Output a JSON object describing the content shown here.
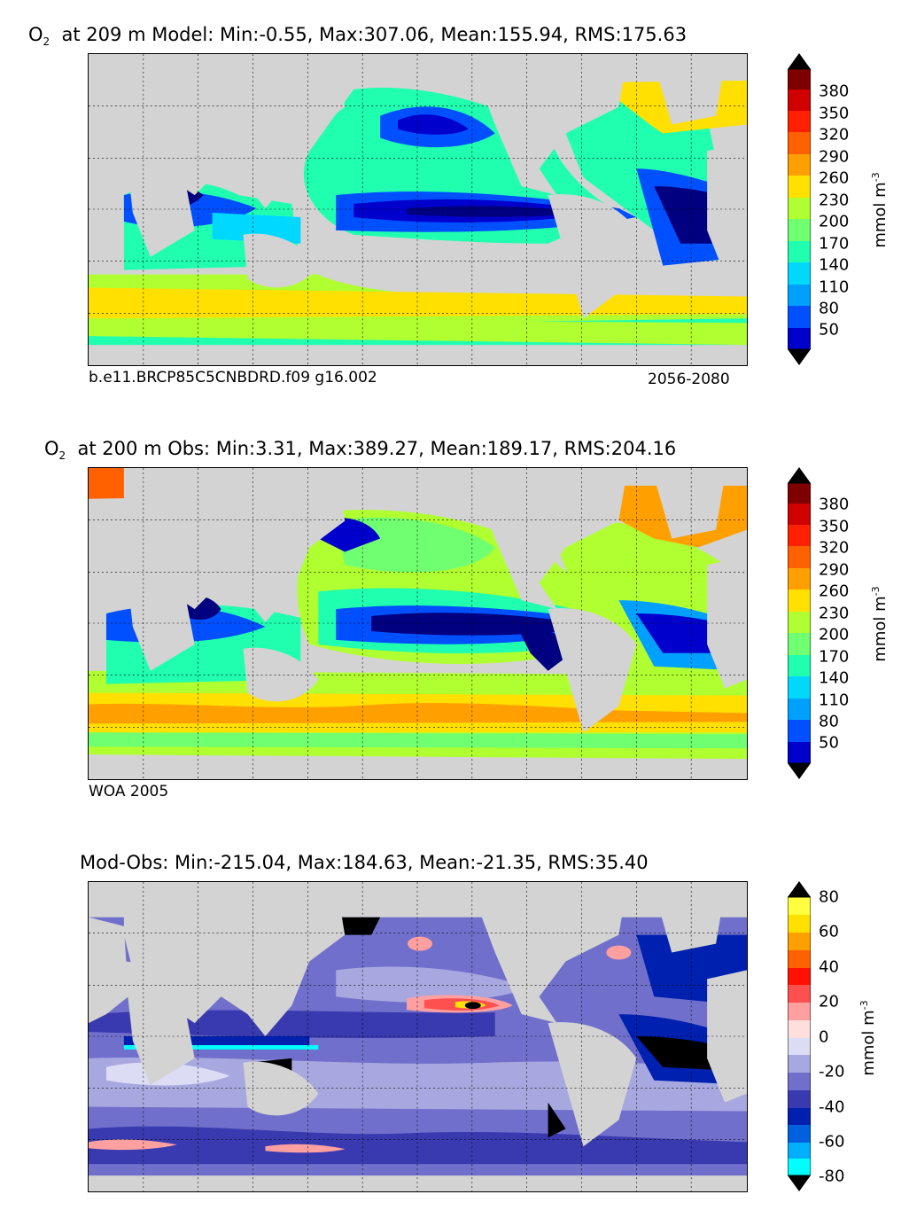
{
  "panels": [
    {
      "title_prefix": "O",
      "title_sub": "2",
      "title_rest": "at 209 m Model: Min:-0.55, Max:307.06, Mean:155.94, RMS:175.63",
      "note_left": "b.e11.BRCP85C5CNBDRD.f09 g16.002",
      "note_right": "2056-2080",
      "colorbar_ticks": [
        "380",
        "350",
        "320",
        "290",
        "260",
        "230",
        "200",
        "170",
        "140",
        "110",
        "80",
        "50"
      ],
      "unit_main": "mmol m",
      "unit_sup": "-3",
      "colors": [
        "#000080",
        "#0000cd",
        "#0000ff",
        "#0050ff",
        "#00a0ff",
        "#00d8ff",
        "#20ffb0",
        "#70ff70",
        "#b0ff30",
        "#ffe000",
        "#ffa000",
        "#ff6000",
        "#ff2000",
        "#d00000",
        "#800000"
      ]
    },
    {
      "title_prefix": "O",
      "title_sub": "2",
      "title_rest": "at 200 m Obs: Min:3.31, Max:389.27, Mean:189.17, RMS:204.16",
      "note_left": "WOA 2005",
      "note_right": "",
      "colorbar_ticks": [
        "380",
        "350",
        "320",
        "290",
        "260",
        "230",
        "200",
        "170",
        "140",
        "110",
        "80",
        "50"
      ],
      "unit_main": "mmol m",
      "unit_sup": "-3"
    },
    {
      "title_prefix": "",
      "title_sub": "",
      "title_rest": "Mod-Obs: Min:-215.04, Max:184.63, Mean:-21.35, RMS:35.40",
      "note_left": "",
      "note_right": "",
      "colorbar_ticks": [
        "80",
        "60",
        "40",
        "20",
        "0",
        "-20",
        "-40",
        "-60",
        "-80"
      ],
      "unit_main": "mmol m",
      "unit_sup": "-3",
      "colors": [
        "#00ffff",
        "#00b0ff",
        "#0060e0",
        "#0020b0",
        "#3a3ab0",
        "#7070cc",
        "#a8a8e0",
        "#dcdcf4",
        "#ffdede",
        "#ffa0a0",
        "#ff5050",
        "#ff1000",
        "#ff6000",
        "#ffa000",
        "#ffe000",
        "#ffff40"
      ]
    }
  ]
}
